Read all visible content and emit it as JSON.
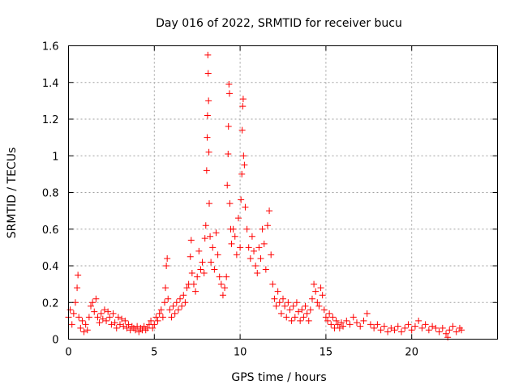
{
  "chart_data": {
    "type": "scatter",
    "title": "Day 016 of 2022, SRMTID for receiver bucu",
    "xlabel": "GPS time / hours",
    "ylabel": "SRMTID / TECUs",
    "xlim": [
      0,
      25
    ],
    "ylim": [
      0,
      1.6
    ],
    "xticks": [
      0,
      5,
      10,
      15,
      20
    ],
    "xtick_labels": [
      "0",
      "5",
      "10",
      "15",
      "20"
    ],
    "yticks": [
      0,
      0.2,
      0.4,
      0.6,
      0.8,
      1.0,
      1.2,
      1.4,
      1.6
    ],
    "ytick_labels": [
      "0",
      "0.2",
      "0.4",
      "0.6",
      "0.8",
      "1",
      "1.2",
      "1.4",
      "1.6"
    ],
    "grid": true,
    "marker": "+",
    "color": "#ff0000",
    "series": [
      {
        "name": "SRMTID",
        "points": [
          [
            0.0,
            0.12
          ],
          [
            0.1,
            0.16
          ],
          [
            0.2,
            0.08
          ],
          [
            0.3,
            0.14
          ],
          [
            0.4,
            0.2
          ],
          [
            0.5,
            0.28
          ],
          [
            0.55,
            0.35
          ],
          [
            0.6,
            0.12
          ],
          [
            0.7,
            0.06
          ],
          [
            0.8,
            0.1
          ],
          [
            0.9,
            0.04
          ],
          [
            1.0,
            0.08
          ],
          [
            1.1,
            0.05
          ],
          [
            1.2,
            0.12
          ],
          [
            1.3,
            0.18
          ],
          [
            1.4,
            0.2
          ],
          [
            1.5,
            0.15
          ],
          [
            1.6,
            0.22
          ],
          [
            1.7,
            0.12
          ],
          [
            1.8,
            0.09
          ],
          [
            1.9,
            0.14
          ],
          [
            2.0,
            0.11
          ],
          [
            2.1,
            0.16
          ],
          [
            2.2,
            0.1
          ],
          [
            2.3,
            0.15
          ],
          [
            2.4,
            0.12
          ],
          [
            2.5,
            0.08
          ],
          [
            2.6,
            0.14
          ],
          [
            2.7,
            0.09
          ],
          [
            2.8,
            0.06
          ],
          [
            2.9,
            0.12
          ],
          [
            3.0,
            0.08
          ],
          [
            3.1,
            0.11
          ],
          [
            3.2,
            0.07
          ],
          [
            3.3,
            0.1
          ],
          [
            3.4,
            0.06
          ],
          [
            3.5,
            0.08
          ],
          [
            3.6,
            0.05
          ],
          [
            3.7,
            0.07
          ],
          [
            3.8,
            0.06
          ],
          [
            3.9,
            0.05
          ],
          [
            4.0,
            0.07
          ],
          [
            4.1,
            0.04
          ],
          [
            4.2,
            0.06
          ],
          [
            4.3,
            0.05
          ],
          [
            4.4,
            0.07
          ],
          [
            4.5,
            0.05
          ],
          [
            4.6,
            0.06
          ],
          [
            4.7,
            0.08
          ],
          [
            4.8,
            0.1
          ],
          [
            4.9,
            0.06
          ],
          [
            5.0,
            0.08
          ],
          [
            5.1,
            0.12
          ],
          [
            5.2,
            0.1
          ],
          [
            5.3,
            0.14
          ],
          [
            5.4,
            0.16
          ],
          [
            5.5,
            0.12
          ],
          [
            5.6,
            0.2
          ],
          [
            5.65,
            0.28
          ],
          [
            5.7,
            0.4
          ],
          [
            5.75,
            0.44
          ],
          [
            5.8,
            0.22
          ],
          [
            5.9,
            0.16
          ],
          [
            6.0,
            0.12
          ],
          [
            6.1,
            0.18
          ],
          [
            6.2,
            0.14
          ],
          [
            6.3,
            0.2
          ],
          [
            6.4,
            0.16
          ],
          [
            6.5,
            0.22
          ],
          [
            6.6,
            0.18
          ],
          [
            6.7,
            0.24
          ],
          [
            6.8,
            0.2
          ],
          [
            6.9,
            0.28
          ],
          [
            7.0,
            0.3
          ],
          [
            7.1,
            0.45
          ],
          [
            7.15,
            0.54
          ],
          [
            7.2,
            0.36
          ],
          [
            7.3,
            0.3
          ],
          [
            7.4,
            0.26
          ],
          [
            7.5,
            0.34
          ],
          [
            7.6,
            0.48
          ],
          [
            7.7,
            0.38
          ],
          [
            7.8,
            0.42
          ],
          [
            7.9,
            0.36
          ],
          [
            7.95,
            0.55
          ],
          [
            8.0,
            0.62
          ],
          [
            8.05,
            0.92
          ],
          [
            8.08,
            1.1
          ],
          [
            8.1,
            1.22
          ],
          [
            8.12,
            1.55
          ],
          [
            8.14,
            1.45
          ],
          [
            8.16,
            1.3
          ],
          [
            8.18,
            1.02
          ],
          [
            8.2,
            0.74
          ],
          [
            8.25,
            0.56
          ],
          [
            8.3,
            0.42
          ],
          [
            8.4,
            0.5
          ],
          [
            8.5,
            0.38
          ],
          [
            8.6,
            0.58
          ],
          [
            8.7,
            0.46
          ],
          [
            8.8,
            0.34
          ],
          [
            8.9,
            0.3
          ],
          [
            9.0,
            0.24
          ],
          [
            9.1,
            0.28
          ],
          [
            9.2,
            0.34
          ],
          [
            9.25,
            0.84
          ],
          [
            9.3,
            1.01
          ],
          [
            9.32,
            1.16
          ],
          [
            9.35,
            1.39
          ],
          [
            9.38,
            1.34
          ],
          [
            9.4,
            0.74
          ],
          [
            9.45,
            0.6
          ],
          [
            9.5,
            0.52
          ],
          [
            9.6,
            0.6
          ],
          [
            9.7,
            0.56
          ],
          [
            9.8,
            0.46
          ],
          [
            9.9,
            0.66
          ],
          [
            10.0,
            0.5
          ],
          [
            10.05,
            0.76
          ],
          [
            10.1,
            0.9
          ],
          [
            10.12,
            1.14
          ],
          [
            10.15,
            1.27
          ],
          [
            10.18,
            1.31
          ],
          [
            10.2,
            1.0
          ],
          [
            10.25,
            0.95
          ],
          [
            10.3,
            0.72
          ],
          [
            10.4,
            0.6
          ],
          [
            10.5,
            0.5
          ],
          [
            10.6,
            0.44
          ],
          [
            10.7,
            0.56
          ],
          [
            10.8,
            0.48
          ],
          [
            10.9,
            0.4
          ],
          [
            11.0,
            0.36
          ],
          [
            11.1,
            0.5
          ],
          [
            11.2,
            0.44
          ],
          [
            11.3,
            0.6
          ],
          [
            11.4,
            0.52
          ],
          [
            11.5,
            0.38
          ],
          [
            11.6,
            0.62
          ],
          [
            11.7,
            0.7
          ],
          [
            11.8,
            0.46
          ],
          [
            11.9,
            0.3
          ],
          [
            12.0,
            0.22
          ],
          [
            12.1,
            0.18
          ],
          [
            12.2,
            0.26
          ],
          [
            12.3,
            0.2
          ],
          [
            12.4,
            0.14
          ],
          [
            12.5,
            0.22
          ],
          [
            12.6,
            0.18
          ],
          [
            12.7,
            0.12
          ],
          [
            12.8,
            0.2
          ],
          [
            12.9,
            0.16
          ],
          [
            13.0,
            0.1
          ],
          [
            13.1,
            0.18
          ],
          [
            13.2,
            0.12
          ],
          [
            13.3,
            0.2
          ],
          [
            13.4,
            0.15
          ],
          [
            13.5,
            0.1
          ],
          [
            13.6,
            0.16
          ],
          [
            13.7,
            0.12
          ],
          [
            13.8,
            0.18
          ],
          [
            13.9,
            0.14
          ],
          [
            14.0,
            0.1
          ],
          [
            14.1,
            0.16
          ],
          [
            14.2,
            0.22
          ],
          [
            14.3,
            0.3
          ],
          [
            14.4,
            0.26
          ],
          [
            14.5,
            0.2
          ],
          [
            14.6,
            0.18
          ],
          [
            14.7,
            0.28
          ],
          [
            14.8,
            0.24
          ],
          [
            14.9,
            0.16
          ],
          [
            15.0,
            0.12
          ],
          [
            15.1,
            0.1
          ],
          [
            15.2,
            0.14
          ],
          [
            15.3,
            0.08
          ],
          [
            15.4,
            0.12
          ],
          [
            15.5,
            0.06
          ],
          [
            15.6,
            0.1
          ],
          [
            15.7,
            0.08
          ],
          [
            15.8,
            0.06
          ],
          [
            15.9,
            0.09
          ],
          [
            16.0,
            0.07
          ],
          [
            16.2,
            0.1
          ],
          [
            16.4,
            0.08
          ],
          [
            16.6,
            0.12
          ],
          [
            16.8,
            0.09
          ],
          [
            17.0,
            0.07
          ],
          [
            17.2,
            0.1
          ],
          [
            17.4,
            0.14
          ],
          [
            17.6,
            0.08
          ],
          [
            17.8,
            0.06
          ],
          [
            18.0,
            0.08
          ],
          [
            18.2,
            0.05
          ],
          [
            18.4,
            0.07
          ],
          [
            18.6,
            0.04
          ],
          [
            18.8,
            0.06
          ],
          [
            19.0,
            0.05
          ],
          [
            19.2,
            0.07
          ],
          [
            19.4,
            0.04
          ],
          [
            19.6,
            0.06
          ],
          [
            19.8,
            0.08
          ],
          [
            20.0,
            0.05
          ],
          [
            20.2,
            0.07
          ],
          [
            20.4,
            0.1
          ],
          [
            20.6,
            0.06
          ],
          [
            20.8,
            0.08
          ],
          [
            21.0,
            0.05
          ],
          [
            21.2,
            0.07
          ],
          [
            21.4,
            0.06
          ],
          [
            21.6,
            0.04
          ],
          [
            21.8,
            0.06
          ],
          [
            22.0,
            0.03
          ],
          [
            22.1,
            0.01
          ],
          [
            22.2,
            0.05
          ],
          [
            22.4,
            0.07
          ],
          [
            22.6,
            0.04
          ],
          [
            22.8,
            0.06
          ],
          [
            22.9,
            0.05
          ]
        ]
      }
    ]
  }
}
